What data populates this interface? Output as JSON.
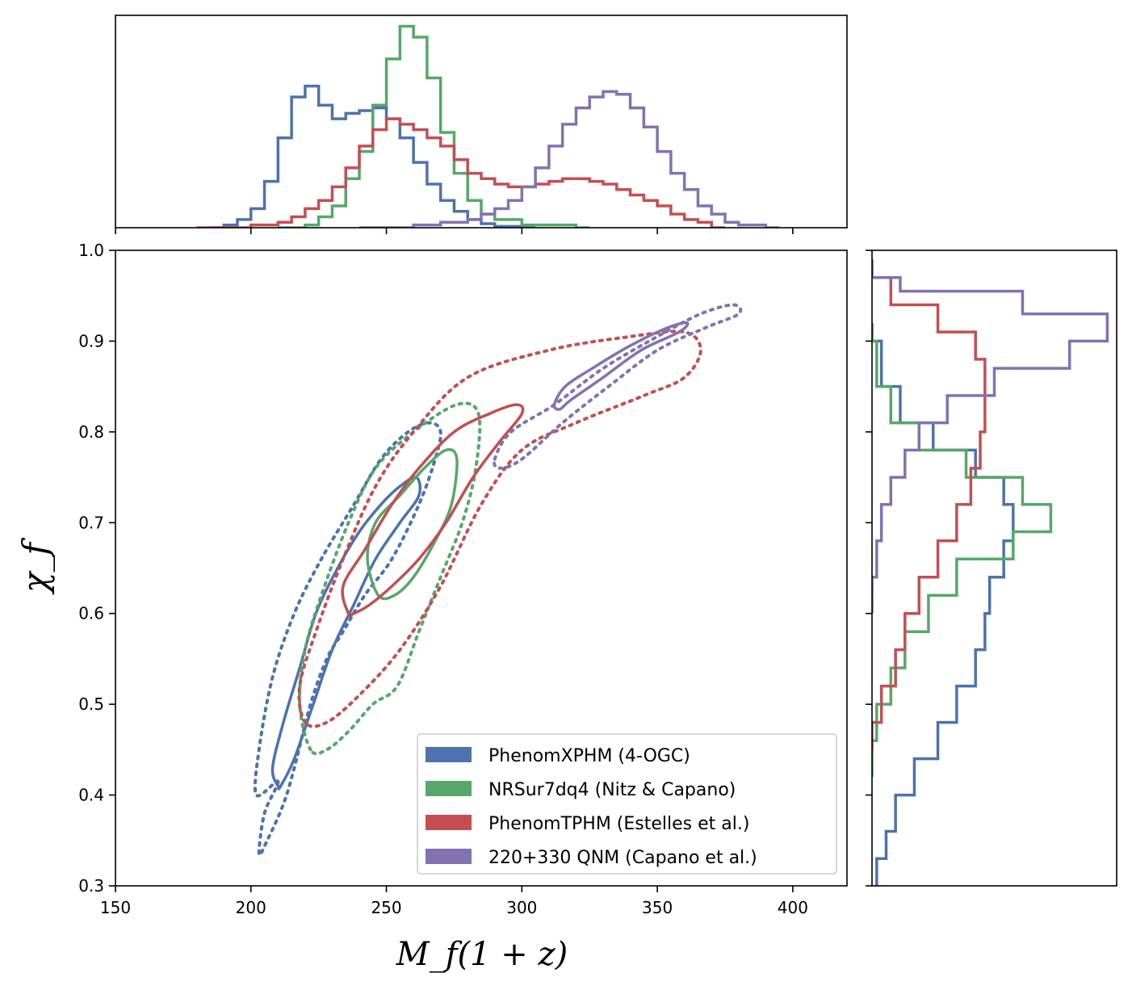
{
  "chart_data": {
    "type": "corner",
    "xlabel": "M_f(1 + z)",
    "ylabel": "χ_f",
    "xlim": [
      150,
      420
    ],
    "ylim": [
      0.3,
      1.0
    ],
    "x_ticks": [
      150,
      200,
      250,
      300,
      350,
      400
    ],
    "x_tick_labels": [
      "150",
      "200",
      "250",
      "300",
      "350",
      "400"
    ],
    "y_ticks": [
      0.3,
      0.4,
      0.5,
      0.6,
      0.7,
      0.8,
      0.9,
      1.0
    ],
    "y_tick_labels": [
      "0.3",
      "0.4",
      "0.5",
      "0.6",
      "0.7",
      "0.8",
      "0.9",
      "1.0"
    ],
    "legend_position": "lower-right",
    "series": [
      {
        "name": "PhenomXPHM (4-OGC)",
        "color": "#4c72b0",
        "contour_90": [
          [
            210,
            0.415
          ],
          [
            205,
            0.38
          ],
          [
            203,
            0.335
          ],
          [
            206,
            0.35
          ],
          [
            212,
            0.39
          ],
          [
            216,
            0.43
          ],
          [
            222,
            0.5
          ],
          [
            228,
            0.55
          ],
          [
            234,
            0.58
          ],
          [
            242,
            0.62
          ],
          [
            252,
            0.66
          ],
          [
            262,
            0.72
          ],
          [
            268,
            0.77
          ],
          [
            270,
            0.8
          ],
          [
            266,
            0.81
          ],
          [
            258,
            0.8
          ],
          [
            248,
            0.77
          ],
          [
            238,
            0.72
          ],
          [
            226,
            0.66
          ],
          [
            216,
            0.6
          ],
          [
            208,
            0.53
          ],
          [
            203,
            0.45
          ],
          [
            202,
            0.4
          ]
        ],
        "contour_50": [
          [
            210,
            0.41
          ],
          [
            208,
            0.43
          ],
          [
            212,
            0.48
          ],
          [
            218,
            0.54
          ],
          [
            224,
            0.6
          ],
          [
            232,
            0.65
          ],
          [
            240,
            0.69
          ],
          [
            248,
            0.72
          ],
          [
            255,
            0.74
          ],
          [
            261,
            0.75
          ],
          [
            262,
            0.73
          ],
          [
            255,
            0.7
          ],
          [
            246,
            0.66
          ],
          [
            238,
            0.61
          ],
          [
            230,
            0.56
          ],
          [
            223,
            0.5
          ],
          [
            216,
            0.44
          ],
          [
            211,
            0.41
          ]
        ],
        "marginal_x": [
          [
            185,
            0.0
          ],
          [
            190,
            0.01
          ],
          [
            195,
            0.03
          ],
          [
            200,
            0.07
          ],
          [
            205,
            0.17
          ],
          [
            210,
            0.33
          ],
          [
            215,
            0.48
          ],
          [
            220,
            0.52
          ],
          [
            225,
            0.45
          ],
          [
            230,
            0.4
          ],
          [
            235,
            0.42
          ],
          [
            240,
            0.43
          ],
          [
            245,
            0.44
          ],
          [
            250,
            0.4
          ],
          [
            255,
            0.33
          ],
          [
            260,
            0.24
          ],
          [
            265,
            0.16
          ],
          [
            270,
            0.1
          ],
          [
            275,
            0.06
          ],
          [
            280,
            0.03
          ],
          [
            285,
            0.015
          ],
          [
            290,
            0.005
          ],
          [
            300,
            0.0
          ]
        ],
        "marginal_y": [
          [
            0.3,
            0.01
          ],
          [
            0.33,
            0.03
          ],
          [
            0.36,
            0.05
          ],
          [
            0.4,
            0.09
          ],
          [
            0.44,
            0.14
          ],
          [
            0.48,
            0.18
          ],
          [
            0.52,
            0.22
          ],
          [
            0.56,
            0.24
          ],
          [
            0.6,
            0.25
          ],
          [
            0.64,
            0.28
          ],
          [
            0.68,
            0.3
          ],
          [
            0.72,
            0.28
          ],
          [
            0.75,
            0.22
          ],
          [
            0.78,
            0.13
          ],
          [
            0.81,
            0.06
          ],
          [
            0.85,
            0.02
          ],
          [
            0.9,
            0.0
          ]
        ]
      },
      {
        "name": "NRSur7dq4 (Nitz & Capano)",
        "color": "#55a868",
        "contour_90": [
          [
            222,
            0.45
          ],
          [
            218,
            0.5
          ],
          [
            220,
            0.56
          ],
          [
            226,
            0.62
          ],
          [
            236,
            0.7
          ],
          [
            246,
            0.76
          ],
          [
            260,
            0.8
          ],
          [
            276,
            0.83
          ],
          [
            284,
            0.82
          ],
          [
            283,
            0.76
          ],
          [
            278,
            0.7
          ],
          [
            270,
            0.64
          ],
          [
            262,
            0.58
          ],
          [
            254,
            0.52
          ],
          [
            245,
            0.5
          ],
          [
            236,
            0.47
          ],
          [
            228,
            0.45
          ]
        ],
        "contour_50": [
          [
            247,
            0.62
          ],
          [
            243,
            0.66
          ],
          [
            246,
            0.7
          ],
          [
            255,
            0.73
          ],
          [
            264,
            0.76
          ],
          [
            272,
            0.78
          ],
          [
            276,
            0.77
          ],
          [
            274,
            0.72
          ],
          [
            268,
            0.68
          ],
          [
            260,
            0.64
          ],
          [
            253,
            0.62
          ]
        ],
        "marginal_x": [
          [
            210,
            0.0
          ],
          [
            220,
            0.01
          ],
          [
            225,
            0.04
          ],
          [
            230,
            0.08
          ],
          [
            235,
            0.18
          ],
          [
            240,
            0.28
          ],
          [
            245,
            0.45
          ],
          [
            250,
            0.62
          ],
          [
            255,
            0.74
          ],
          [
            260,
            0.7
          ],
          [
            265,
            0.55
          ],
          [
            270,
            0.35
          ],
          [
            275,
            0.2
          ],
          [
            280,
            0.1
          ],
          [
            285,
            0.05
          ],
          [
            290,
            0.03
          ],
          [
            300,
            0.01
          ],
          [
            320,
            0.0
          ]
        ],
        "marginal_y": [
          [
            0.42,
            0.0
          ],
          [
            0.46,
            0.01
          ],
          [
            0.5,
            0.04
          ],
          [
            0.54,
            0.07
          ],
          [
            0.58,
            0.12
          ],
          [
            0.62,
            0.18
          ],
          [
            0.66,
            0.3
          ],
          [
            0.69,
            0.38
          ],
          [
            0.72,
            0.32
          ],
          [
            0.75,
            0.2
          ],
          [
            0.78,
            0.1
          ],
          [
            0.81,
            0.04
          ],
          [
            0.85,
            0.01
          ],
          [
            0.9,
            0.0
          ]
        ]
      },
      {
        "name": "PhenomTPHM (Estelles et al.)",
        "color": "#c44e52",
        "contour_90": [
          [
            220,
            0.48
          ],
          [
            218,
            0.52
          ],
          [
            224,
            0.58
          ],
          [
            234,
            0.66
          ],
          [
            246,
            0.74
          ],
          [
            260,
            0.8
          ],
          [
            280,
            0.86
          ],
          [
            310,
            0.89
          ],
          [
            340,
            0.905
          ],
          [
            360,
            0.91
          ],
          [
            366,
            0.89
          ],
          [
            360,
            0.86
          ],
          [
            345,
            0.84
          ],
          [
            320,
            0.81
          ],
          [
            300,
            0.78
          ],
          [
            285,
            0.72
          ],
          [
            270,
            0.63
          ],
          [
            255,
            0.56
          ],
          [
            240,
            0.51
          ],
          [
            228,
            0.48
          ]
        ],
        "contour_50": [
          [
            236,
            0.6
          ],
          [
            234,
            0.63
          ],
          [
            242,
            0.67
          ],
          [
            252,
            0.72
          ],
          [
            262,
            0.76
          ],
          [
            275,
            0.8
          ],
          [
            288,
            0.82
          ],
          [
            298,
            0.83
          ],
          [
            300,
            0.82
          ],
          [
            292,
            0.79
          ],
          [
            282,
            0.75
          ],
          [
            272,
            0.7
          ],
          [
            262,
            0.66
          ],
          [
            252,
            0.63
          ],
          [
            244,
            0.61
          ],
          [
            238,
            0.6
          ]
        ],
        "marginal_x": [
          [
            180,
            0.0
          ],
          [
            200,
            0.01
          ],
          [
            210,
            0.02
          ],
          [
            215,
            0.04
          ],
          [
            220,
            0.07
          ],
          [
            225,
            0.1
          ],
          [
            230,
            0.15
          ],
          [
            235,
            0.22
          ],
          [
            240,
            0.3
          ],
          [
            245,
            0.36
          ],
          [
            250,
            0.4
          ],
          [
            255,
            0.38
          ],
          [
            260,
            0.36
          ],
          [
            265,
            0.33
          ],
          [
            270,
            0.3
          ],
          [
            275,
            0.25
          ],
          [
            280,
            0.2
          ],
          [
            285,
            0.18
          ],
          [
            290,
            0.16
          ],
          [
            295,
            0.15
          ],
          [
            300,
            0.15
          ],
          [
            305,
            0.16
          ],
          [
            310,
            0.17
          ],
          [
            315,
            0.18
          ],
          [
            320,
            0.18
          ],
          [
            325,
            0.17
          ],
          [
            330,
            0.16
          ],
          [
            335,
            0.14
          ],
          [
            340,
            0.12
          ],
          [
            345,
            0.1
          ],
          [
            350,
            0.08
          ],
          [
            355,
            0.05
          ],
          [
            360,
            0.03
          ],
          [
            365,
            0.02
          ],
          [
            370,
            0.0
          ]
        ],
        "marginal_y": [
          [
            0.45,
            0.0
          ],
          [
            0.48,
            0.02
          ],
          [
            0.52,
            0.05
          ],
          [
            0.56,
            0.07
          ],
          [
            0.6,
            0.1
          ],
          [
            0.64,
            0.14
          ],
          [
            0.68,
            0.18
          ],
          [
            0.72,
            0.21
          ],
          [
            0.76,
            0.23
          ],
          [
            0.8,
            0.24
          ],
          [
            0.84,
            0.24
          ],
          [
            0.88,
            0.22
          ],
          [
            0.91,
            0.14
          ],
          [
            0.94,
            0.04
          ],
          [
            0.97,
            0.0
          ]
        ]
      },
      {
        "name": "220+330 QNM (Capano et al.)",
        "color": "#8172b2",
        "contour_90": [
          [
            290,
            0.77
          ],
          [
            296,
            0.8
          ],
          [
            312,
            0.83
          ],
          [
            330,
            0.87
          ],
          [
            350,
            0.905
          ],
          [
            366,
            0.93
          ],
          [
            378,
            0.94
          ],
          [
            380,
            0.93
          ],
          [
            368,
            0.915
          ],
          [
            350,
            0.89
          ],
          [
            332,
            0.85
          ],
          [
            315,
            0.81
          ],
          [
            300,
            0.77
          ],
          [
            292,
            0.76
          ]
        ],
        "contour_50": [
          [
            312,
            0.83
          ],
          [
            316,
            0.85
          ],
          [
            326,
            0.87
          ],
          [
            340,
            0.895
          ],
          [
            354,
            0.915
          ],
          [
            361,
            0.92
          ],
          [
            358,
            0.91
          ],
          [
            344,
            0.89
          ],
          [
            330,
            0.86
          ],
          [
            318,
            0.835
          ],
          [
            314,
            0.825
          ]
        ],
        "marginal_x": [
          [
            240,
            0.0
          ],
          [
            260,
            0.01
          ],
          [
            270,
            0.02
          ],
          [
            280,
            0.03
          ],
          [
            285,
            0.05
          ],
          [
            290,
            0.07
          ],
          [
            295,
            0.1
          ],
          [
            300,
            0.15
          ],
          [
            305,
            0.22
          ],
          [
            310,
            0.3
          ],
          [
            315,
            0.38
          ],
          [
            320,
            0.44
          ],
          [
            325,
            0.48
          ],
          [
            330,
            0.5
          ],
          [
            335,
            0.49
          ],
          [
            340,
            0.44
          ],
          [
            345,
            0.37
          ],
          [
            350,
            0.28
          ],
          [
            355,
            0.2
          ],
          [
            360,
            0.14
          ],
          [
            365,
            0.08
          ],
          [
            370,
            0.05
          ],
          [
            375,
            0.02
          ],
          [
            380,
            0.01
          ],
          [
            390,
            0.0
          ]
        ],
        "marginal_y": [
          [
            0.6,
            0.0
          ],
          [
            0.64,
            0.01
          ],
          [
            0.68,
            0.02
          ],
          [
            0.72,
            0.04
          ],
          [
            0.75,
            0.07
          ],
          [
            0.78,
            0.1
          ],
          [
            0.81,
            0.16
          ],
          [
            0.84,
            0.26
          ],
          [
            0.87,
            0.42
          ],
          [
            0.9,
            0.5
          ],
          [
            0.93,
            0.32
          ],
          [
            0.955,
            0.06
          ],
          [
            0.97,
            0.0
          ]
        ]
      }
    ]
  }
}
